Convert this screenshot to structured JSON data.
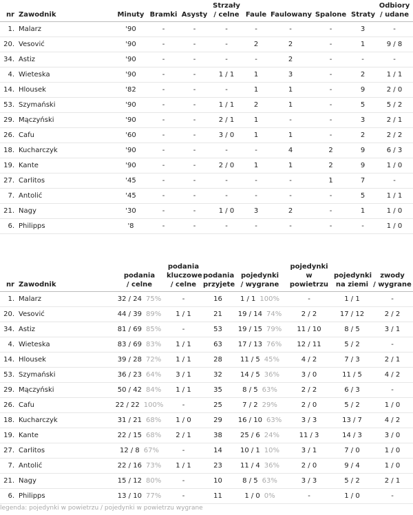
{
  "table1": {
    "headers": [
      "nr",
      "Zawodnik",
      "Minuty",
      "Bramki",
      "Asysty",
      [
        "Strzały",
        "/ celne"
      ],
      "Faule",
      "Faulowany",
      "Spalone",
      "Straty",
      [
        "Odbiory",
        "/ udane"
      ]
    ],
    "rows": [
      [
        "1.",
        "Malarz",
        "'90",
        "-",
        "-",
        "-",
        "-",
        "-",
        "-",
        "3",
        "-"
      ],
      [
        "20.",
        "Vesović",
        "'90",
        "-",
        "-",
        "-",
        "2",
        "2",
        "-",
        "1",
        "9 / 8"
      ],
      [
        "34.",
        "Astiz",
        "'90",
        "-",
        "-",
        "-",
        "-",
        "2",
        "-",
        "-",
        "-"
      ],
      [
        "4.",
        "Wieteska",
        "'90",
        "-",
        "-",
        "1 / 1",
        "1",
        "3",
        "-",
        "2",
        "1 / 1"
      ],
      [
        "14.",
        "Hlousek",
        "'82",
        "-",
        "-",
        "-",
        "1",
        "1",
        "-",
        "9",
        "2 / 0"
      ],
      [
        "53.",
        "Szymański",
        "'90",
        "-",
        "-",
        "1 / 1",
        "2",
        "1",
        "-",
        "5",
        "5 / 2"
      ],
      [
        "29.",
        "Mączyński",
        "'90",
        "-",
        "-",
        "2 / 1",
        "1",
        "-",
        "-",
        "3",
        "2 / 1"
      ],
      [
        "26.",
        "Cafu",
        "'60",
        "-",
        "-",
        "3 / 0",
        "1",
        "1",
        "-",
        "2",
        "2 / 2"
      ],
      [
        "18.",
        "Kucharczyk",
        "'90",
        "-",
        "-",
        "-",
        "-",
        "4",
        "2",
        "9",
        "6 / 3"
      ],
      [
        "19.",
        "Kante",
        "'90",
        "-",
        "-",
        "2 / 0",
        "1",
        "1",
        "2",
        "9",
        "1 / 0"
      ],
      [
        "27.",
        "Carlitos",
        "'45",
        "-",
        "-",
        "-",
        "-",
        "-",
        "1",
        "7",
        "-"
      ],
      [
        "7.",
        "Antolić",
        "'45",
        "-",
        "-",
        "-",
        "-",
        "-",
        "-",
        "5",
        "1 / 1"
      ],
      [
        "21.",
        "Nagy",
        "'30",
        "-",
        "-",
        "1 / 0",
        "3",
        "2",
        "-",
        "1",
        "1 / 0"
      ],
      [
        "6.",
        "Philipps",
        "'8",
        "-",
        "-",
        "-",
        "-",
        "-",
        "-",
        "-",
        "1 / 0"
      ]
    ]
  },
  "table2": {
    "headers": [
      "nr",
      "Zawodnik",
      [
        "podania",
        "/ celne"
      ],
      [
        "podania",
        "kluczowe",
        "/ celne"
      ],
      [
        "podania",
        "przyjete"
      ],
      [
        "pojedynki",
        "/ wygrane"
      ],
      [
        "pojedynki",
        "w powietrzu"
      ],
      [
        "pojedynki",
        "na ziemi"
      ],
      [
        "zwody",
        "/ wygrane"
      ]
    ],
    "rows": [
      [
        "1.",
        "Malarz",
        [
          "32 / 24",
          "75%"
        ],
        "-",
        "16",
        [
          "1 / 1",
          "100%"
        ],
        "-",
        "1 / 1",
        "-"
      ],
      [
        "20.",
        "Vesović",
        [
          "44 / 39",
          "89%"
        ],
        "1 / 1",
        "21",
        [
          "19 / 14",
          "74%"
        ],
        "2 / 2",
        "17 / 12",
        "2 / 2"
      ],
      [
        "34.",
        "Astiz",
        [
          "81 / 69",
          "85%"
        ],
        "-",
        "53",
        [
          "19 / 15",
          "79%"
        ],
        "11 / 10",
        "8 / 5",
        "3 / 1"
      ],
      [
        "4.",
        "Wieteska",
        [
          "83 / 69",
          "83%"
        ],
        "1 / 1",
        "63",
        [
          "17 / 13",
          "76%"
        ],
        "12 / 11",
        "5 / 2",
        "-"
      ],
      [
        "14.",
        "Hlousek",
        [
          "39 / 28",
          "72%"
        ],
        "1 / 1",
        "28",
        [
          "11 / 5",
          "45%"
        ],
        "4 / 2",
        "7 / 3",
        "2 / 1"
      ],
      [
        "53.",
        "Szymański",
        [
          "36 / 23",
          "64%"
        ],
        "3 / 1",
        "32",
        [
          "14 / 5",
          "36%"
        ],
        "3 / 0",
        "11 / 5",
        "4 / 2"
      ],
      [
        "29.",
        "Mączyński",
        [
          "50 / 42",
          "84%"
        ],
        "1 / 1",
        "35",
        [
          "8 / 5",
          "63%"
        ],
        "2 / 2",
        "6 / 3",
        "-"
      ],
      [
        "26.",
        "Cafu",
        [
          "22 / 22",
          "100%"
        ],
        "-",
        "25",
        [
          "7 / 2",
          "29%"
        ],
        "2 / 0",
        "5 / 2",
        "1 / 0"
      ],
      [
        "18.",
        "Kucharczyk",
        [
          "31 / 21",
          "68%"
        ],
        "1 / 0",
        "29",
        [
          "16 / 10",
          "63%"
        ],
        "3 / 3",
        "13 / 7",
        "4 / 2"
      ],
      [
        "19.",
        "Kante",
        [
          "22 / 15",
          "68%"
        ],
        "2 / 1",
        "38",
        [
          "25 / 6",
          "24%"
        ],
        "11 / 3",
        "14 / 3",
        "3 / 0"
      ],
      [
        "27.",
        "Carlitos",
        [
          "12 / 8",
          "67%"
        ],
        "-",
        "14",
        [
          "10 / 1",
          "10%"
        ],
        "3 / 1",
        "7 / 0",
        "1 / 0"
      ],
      [
        "7.",
        "Antolić",
        [
          "22 / 16",
          "73%"
        ],
        "1 / 1",
        "23",
        [
          "11 / 4",
          "36%"
        ],
        "2 / 0",
        "9 / 4",
        "1 / 0"
      ],
      [
        "21.",
        "Nagy",
        [
          "15 / 12",
          "80%"
        ],
        "-",
        "10",
        [
          "8 / 5",
          "63%"
        ],
        "3 / 3",
        "5 / 2",
        "2 / 1"
      ],
      [
        "6.",
        "Philipps",
        [
          "13 / 10",
          "77%"
        ],
        "-",
        "11",
        [
          "1 / 0",
          "0%"
        ],
        "-",
        "1 / 0",
        "-"
      ]
    ]
  },
  "legend": "legenda: pojedynki w powietrzu / pojedynki w powietrzu wygrane"
}
